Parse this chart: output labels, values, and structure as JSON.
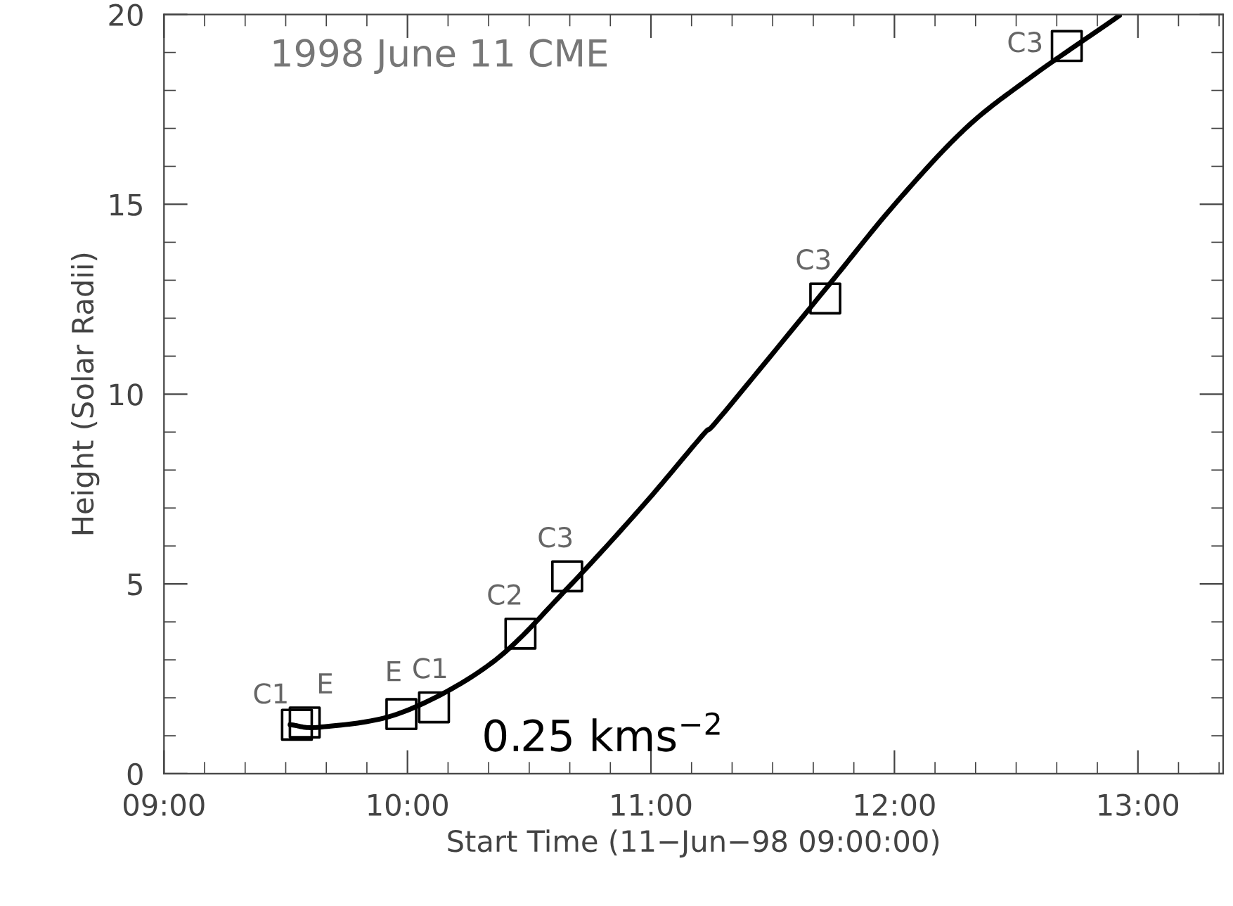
{
  "chart_data": {
    "type": "scatter",
    "xlabel": "Start Time (11−Jun−98 09:00:00)",
    "ylabel": "Height (Solar Radii)",
    "xlim": [
      9,
      13.35
    ],
    "ylim": [
      0,
      20
    ],
    "xticks": [
      {
        "value": 9,
        "label": "09:00"
      },
      {
        "value": 10,
        "label": "10:00"
      },
      {
        "value": 11,
        "label": "11:00"
      },
      {
        "value": 12,
        "label": "12:00"
      },
      {
        "value": 13,
        "label": "13:00"
      }
    ],
    "yticks": [
      0,
      5,
      10,
      15,
      20
    ],
    "grid": false,
    "legend": false,
    "series": [
      {
        "type": "scatter",
        "marker": "square",
        "color": "#000000",
        "x": [
          9.546,
          9.578,
          9.975,
          10.109,
          10.464,
          10.656,
          11.716,
          12.708
        ],
        "values": [
          1.29,
          1.35,
          1.57,
          1.75,
          3.69,
          5.2,
          12.52,
          19.17
        ]
      },
      {
        "type": "line",
        "marker": "none",
        "line_style": "solid",
        "color": "#000000",
        "x": [
          9.518,
          9.646,
          9.975,
          10.346,
          10.656,
          10.964,
          11.21,
          11.288,
          11.716,
          12.0,
          12.289,
          12.558,
          12.924
        ],
        "values": [
          1.29,
          1.23,
          1.61,
          2.92,
          4.88,
          7.04,
          8.9,
          9.42,
          12.76,
          14.99,
          16.98,
          18.34,
          19.97
        ]
      }
    ],
    "annotations": [
      {
        "text": "C1",
        "x": 9.546,
        "y": 1.29
      },
      {
        "text": "E",
        "x": 9.578,
        "y": 1.35
      },
      {
        "text": "E",
        "x": 9.975,
        "y": 1.57
      },
      {
        "text": "C1",
        "x": 10.109,
        "y": 1.75
      },
      {
        "text": "C2",
        "x": 10.464,
        "y": 3.69
      },
      {
        "text": "C3",
        "x": 10.656,
        "y": 5.2
      },
      {
        "text": "C3",
        "x": 11.716,
        "y": 12.52
      },
      {
        "text": "C3",
        "x": 12.708,
        "y": 19.17
      },
      "1998 June 11 CME",
      "0.25 kms$^{−2}$"
    ]
  }
}
